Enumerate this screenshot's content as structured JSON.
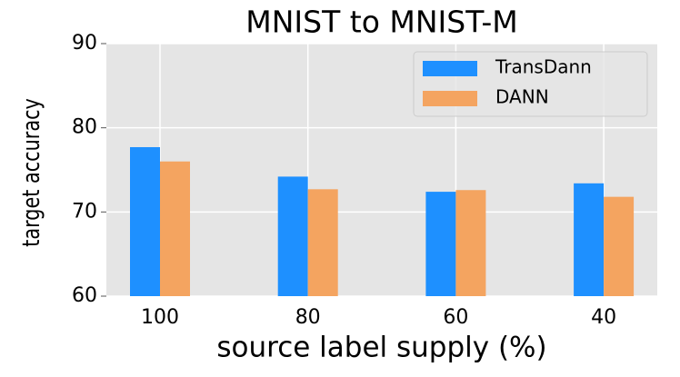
{
  "chart_data": {
    "type": "bar",
    "title": "MNIST to MNIST-M",
    "x_label": "source label supply (%)",
    "y_label": "target accuracy",
    "categories": [
      "100",
      "80",
      "60",
      "40"
    ],
    "series": [
      {
        "name": "TransDann",
        "color": "#1e90ff",
        "values": [
          77.7,
          74.2,
          72.4,
          73.4
        ]
      },
      {
        "name": "DANN",
        "color": "#f4a460",
        "values": [
          76.0,
          72.7,
          72.6,
          71.8
        ]
      }
    ],
    "ylim": [
      60,
      90
    ],
    "yticks": [
      60,
      70,
      80,
      90
    ],
    "grid": true,
    "legend": "upper right"
  }
}
